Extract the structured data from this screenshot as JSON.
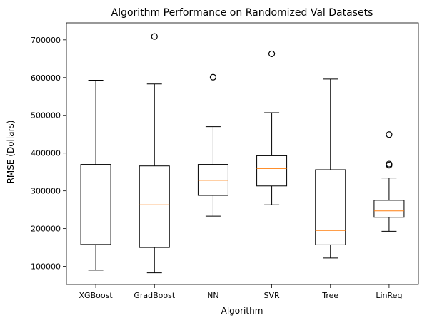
{
  "chart_data": {
    "type": "boxplot",
    "title": "Algorithm Performance on Randomized Val Datasets",
    "xlabel": "Algorithm",
    "ylabel": "RMSE (Dollars)",
    "ylim": [
      52000,
      745000
    ],
    "yticks": [
      100000,
      200000,
      300000,
      400000,
      500000,
      600000,
      700000
    ],
    "ytick_labels": [
      "100000",
      "200000",
      "300000",
      "400000",
      "500000",
      "600000",
      "700000"
    ],
    "grid": false,
    "colors": {
      "box": "#000000",
      "median": "#ff7f0e",
      "outlier": "#000000"
    },
    "categories": [
      "XGBoost",
      "GradBoost",
      "NN",
      "SVR",
      "Tree",
      "LinReg"
    ],
    "boxes": [
      {
        "whisker_low": 90000,
        "q1": 158000,
        "median": 270000,
        "q3": 370000,
        "whisker_high": 593000,
        "outliers": []
      },
      {
        "whisker_low": 83000,
        "q1": 150000,
        "median": 263000,
        "q3": 366000,
        "whisker_high": 583000,
        "outliers": [
          709000
        ]
      },
      {
        "whisker_low": 233000,
        "q1": 288000,
        "median": 328000,
        "q3": 370000,
        "whisker_high": 470000,
        "outliers": [
          601000
        ]
      },
      {
        "whisker_low": 263000,
        "q1": 313000,
        "median": 359000,
        "q3": 393000,
        "whisker_high": 507000,
        "outliers": [
          663000
        ]
      },
      {
        "whisker_low": 122000,
        "q1": 157000,
        "median": 195000,
        "q3": 356000,
        "whisker_high": 596000,
        "outliers": []
      },
      {
        "whisker_low": 193000,
        "q1": 230000,
        "median": 247000,
        "q3": 275000,
        "whisker_high": 334000,
        "outliers": [
          368000,
          371000,
          449000
        ]
      }
    ]
  }
}
